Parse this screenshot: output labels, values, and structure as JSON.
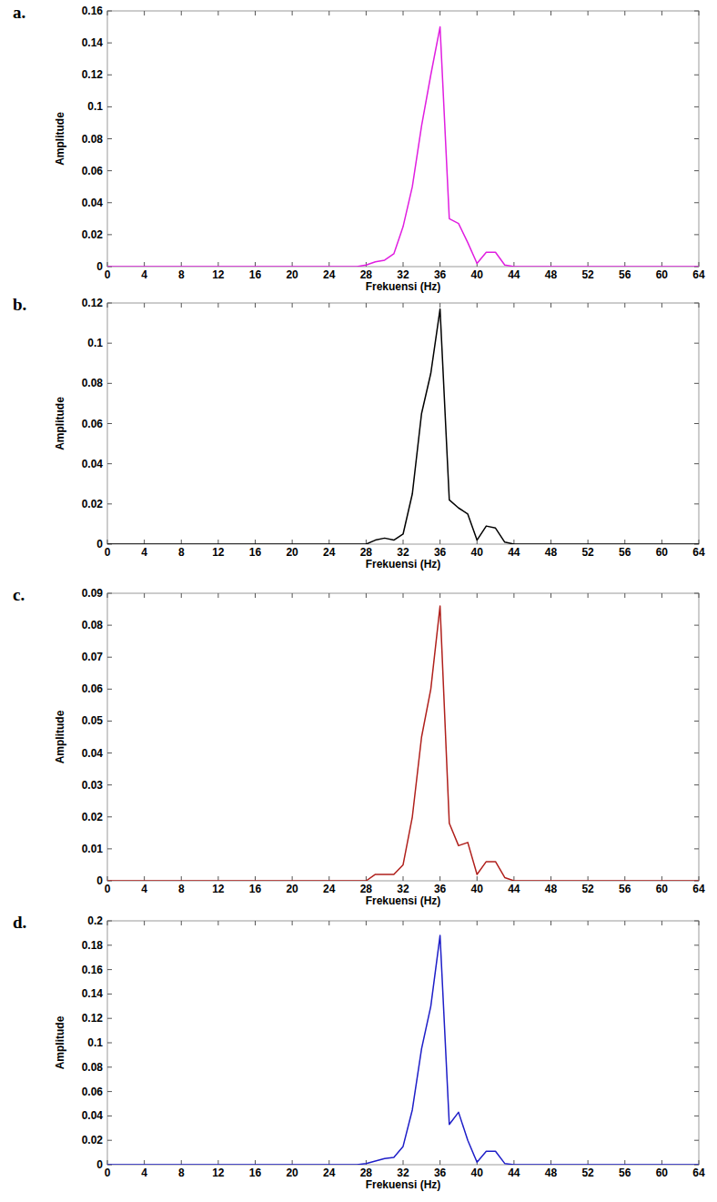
{
  "chart_data": [
    {
      "type": "line",
      "title": "a.",
      "xlabel": "Frekuensi (Hz)",
      "ylabel": "Amplitude",
      "color": "#e01ee0",
      "x": [
        0,
        26,
        27,
        28,
        29,
        30,
        31,
        32,
        33,
        34,
        35,
        36,
        37,
        38,
        39,
        40,
        41,
        42,
        43,
        44,
        46,
        64
      ],
      "values": [
        0,
        0,
        0,
        0.001,
        0.003,
        0.004,
        0.008,
        0.025,
        0.05,
        0.088,
        0.12,
        0.15,
        0.03,
        0.027,
        0.015,
        0.002,
        0.009,
        0.009,
        0.001,
        0,
        0,
        0
      ],
      "xlim": [
        0,
        64
      ],
      "xticks": [
        0,
        4,
        8,
        12,
        16,
        20,
        24,
        28,
        32,
        36,
        40,
        44,
        48,
        52,
        56,
        60,
        64
      ],
      "ylim": [
        0,
        0.16
      ],
      "yticks": [
        0,
        0.02,
        0.04,
        0.06,
        0.08,
        0.1,
        0.12,
        0.14,
        0.16
      ],
      "grid": false
    },
    {
      "type": "line",
      "title": "b.",
      "xlabel": "Frekuensi (Hz)",
      "ylabel": "Amplitude",
      "color": "#000000",
      "x": [
        0,
        26,
        27,
        28,
        29,
        30,
        31,
        32,
        33,
        34,
        35,
        36,
        37,
        38,
        39,
        40,
        41,
        42,
        43,
        44,
        46,
        64
      ],
      "values": [
        0,
        0,
        0,
        0,
        0.002,
        0.003,
        0.002,
        0.005,
        0.025,
        0.065,
        0.085,
        0.117,
        0.022,
        0.018,
        0.015,
        0.002,
        0.009,
        0.008,
        0.001,
        0,
        0,
        0
      ],
      "xlim": [
        0,
        64
      ],
      "xticks": [
        0,
        4,
        8,
        12,
        16,
        20,
        24,
        28,
        32,
        36,
        40,
        44,
        48,
        52,
        56,
        60,
        64
      ],
      "ylim": [
        0,
        0.12
      ],
      "yticks": [
        0,
        0.02,
        0.04,
        0.06,
        0.08,
        0.1,
        0.12
      ],
      "grid": false
    },
    {
      "type": "line",
      "title": "c.",
      "xlabel": "Frekuensi (Hz)",
      "ylabel": "Amplitude",
      "color": "#b0201c",
      "x": [
        0,
        26,
        27,
        28,
        29,
        30,
        31,
        32,
        33,
        34,
        35,
        36,
        37,
        38,
        39,
        40,
        41,
        42,
        43,
        44,
        46,
        64
      ],
      "values": [
        0,
        0,
        0,
        0,
        0.002,
        0.002,
        0.002,
        0.005,
        0.02,
        0.045,
        0.06,
        0.086,
        0.018,
        0.011,
        0.012,
        0.002,
        0.006,
        0.006,
        0.001,
        0,
        0,
        0
      ],
      "xlim": [
        0,
        64
      ],
      "xticks": [
        0,
        4,
        8,
        12,
        16,
        20,
        24,
        28,
        32,
        36,
        40,
        44,
        48,
        52,
        56,
        60,
        64
      ],
      "ylim": [
        0,
        0.09
      ],
      "yticks": [
        0,
        0.01,
        0.02,
        0.03,
        0.04,
        0.05,
        0.06,
        0.07,
        0.08,
        0.09
      ],
      "grid": false
    },
    {
      "type": "line",
      "title": "d.",
      "xlabel": "Frekuensi (Hz)",
      "ylabel": "Amplitude",
      "color": "#1e1ec8",
      "x": [
        0,
        26,
        27,
        28,
        29,
        30,
        31,
        32,
        33,
        34,
        35,
        36,
        37,
        38,
        39,
        40,
        41,
        42,
        43,
        44,
        46,
        64
      ],
      "values": [
        0,
        0,
        0,
        0.001,
        0.003,
        0.005,
        0.006,
        0.015,
        0.045,
        0.095,
        0.13,
        0.188,
        0.033,
        0.043,
        0.02,
        0.002,
        0.011,
        0.011,
        0.001,
        0,
        0,
        0
      ],
      "xlim": [
        0,
        64
      ],
      "xticks": [
        0,
        4,
        8,
        12,
        16,
        20,
        24,
        28,
        32,
        36,
        40,
        44,
        48,
        52,
        56,
        60,
        64
      ],
      "ylim": [
        0,
        0.2
      ],
      "yticks": [
        0,
        0.02,
        0.04,
        0.06,
        0.08,
        0.1,
        0.12,
        0.14,
        0.16,
        0.18,
        0.2
      ],
      "grid": false
    }
  ]
}
